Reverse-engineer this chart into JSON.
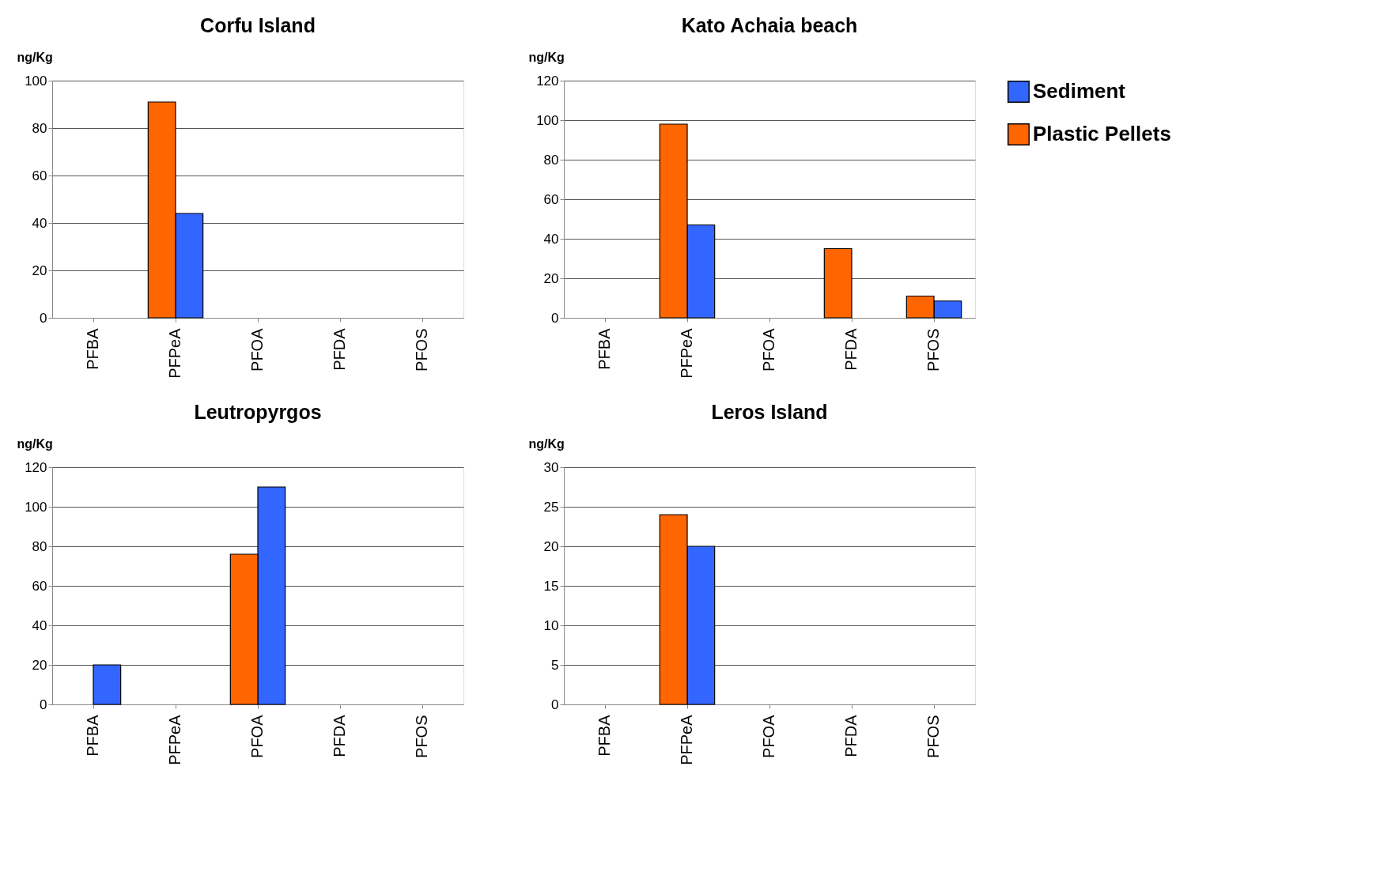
{
  "chart_data": [
    {
      "type": "bar",
      "title": "Corfu Island",
      "ylabel": "ng/Kg",
      "categories": [
        "PFBA",
        "PFPeA",
        "PFOA",
        "PFDA",
        "PFOS"
      ],
      "ylim": [
        0,
        100
      ],
      "yticks": [
        0,
        20,
        40,
        60,
        80,
        100
      ],
      "grid": "y",
      "legend": "right",
      "series": [
        {
          "name": "Sediment",
          "color": "#3366ff",
          "values": [
            null,
            44,
            null,
            null,
            null
          ]
        },
        {
          "name": "Plastic Pellets",
          "color": "#ff6600",
          "values": [
            null,
            91,
            null,
            null,
            null
          ]
        }
      ]
    },
    {
      "type": "bar",
      "title": "Kato Achaia beach",
      "ylabel": "ng/Kg",
      "categories": [
        "PFBA",
        "PFPeA",
        "PFOA",
        "PFDA",
        "PFOS"
      ],
      "ylim": [
        0,
        120
      ],
      "yticks": [
        0,
        20,
        40,
        60,
        80,
        100,
        120
      ],
      "grid": "y",
      "legend": "right",
      "series": [
        {
          "name": "Sediment",
          "color": "#3366ff",
          "values": [
            null,
            47,
            null,
            null,
            8.5
          ]
        },
        {
          "name": "Plastic Pellets",
          "color": "#ff6600",
          "values": [
            null,
            98,
            null,
            35,
            11
          ]
        }
      ]
    },
    {
      "type": "bar",
      "title": "Leutropyrgos",
      "ylabel": "ng/Kg",
      "categories": [
        "PFBA",
        "PFPeA",
        "PFOA",
        "PFDA",
        "PFOS"
      ],
      "ylim": [
        0,
        120
      ],
      "yticks": [
        0,
        20,
        40,
        60,
        80,
        100,
        120
      ],
      "grid": "y",
      "legend": "right",
      "series": [
        {
          "name": "Sediment",
          "color": "#3366ff",
          "values": [
            20,
            null,
            110,
            null,
            null
          ]
        },
        {
          "name": "Plastic Pellets",
          "color": "#ff6600",
          "values": [
            null,
            null,
            76,
            null,
            null
          ]
        }
      ]
    },
    {
      "type": "bar",
      "title": "Leros Island",
      "ylabel": "ng/Kg",
      "categories": [
        "PFBA",
        "PFPeA",
        "PFOA",
        "PFDA",
        "PFOS"
      ],
      "ylim": [
        0,
        30
      ],
      "yticks": [
        0,
        5,
        10,
        15,
        20,
        25,
        30
      ],
      "grid": "y",
      "legend": "right",
      "series": [
        {
          "name": "Sediment",
          "color": "#3366ff",
          "values": [
            null,
            20,
            null,
            null,
            null
          ]
        },
        {
          "name": "Plastic Pellets",
          "color": "#ff6600",
          "values": [
            null,
            24,
            null,
            null,
            null
          ]
        }
      ]
    }
  ]
}
